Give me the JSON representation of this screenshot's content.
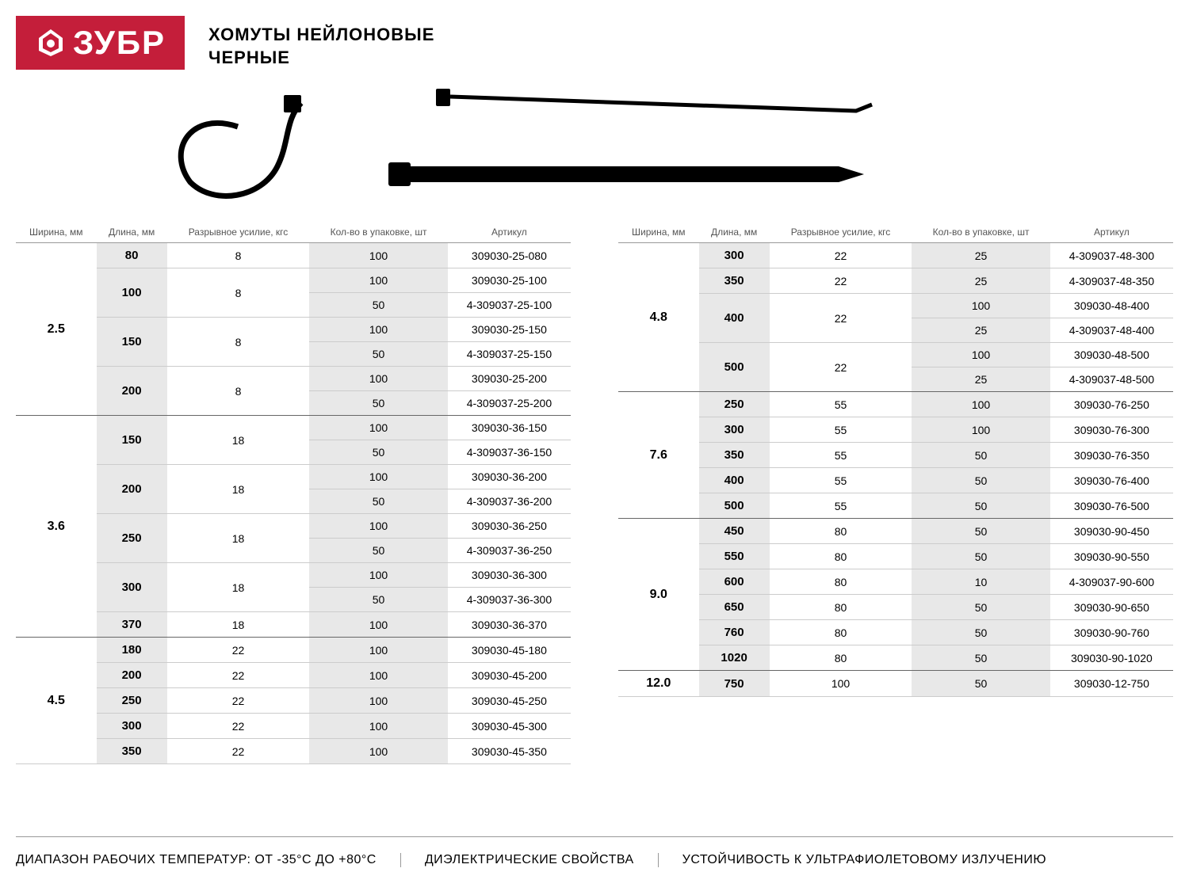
{
  "brand": "ЗУБР",
  "title_line1": "ХОМУТЫ НЕЙЛОНОВЫЕ",
  "title_line2": "ЧЕРНЫЕ",
  "columns": {
    "width": "Ширина, мм",
    "length": "Длина, мм",
    "force": "Разрывное усилие, кгс",
    "pack": "Кол-во в упаковке, шт",
    "sku": "Артикул"
  },
  "colors": {
    "brand_bg": "#c41e3a",
    "alt_bg": "#e8e8e8",
    "border": "#cccccc",
    "border_strong": "#666666"
  },
  "left_groups": [
    {
      "width": "2.5",
      "rows": [
        {
          "length": "80",
          "force": "8",
          "packs": [
            {
              "qty": "100",
              "sku": "309030-25-080"
            }
          ]
        },
        {
          "length": "100",
          "force": "8",
          "packs": [
            {
              "qty": "100",
              "sku": "309030-25-100"
            },
            {
              "qty": "50",
              "sku": "4-309037-25-100"
            }
          ]
        },
        {
          "length": "150",
          "force": "8",
          "packs": [
            {
              "qty": "100",
              "sku": "309030-25-150"
            },
            {
              "qty": "50",
              "sku": "4-309037-25-150"
            }
          ]
        },
        {
          "length": "200",
          "force": "8",
          "packs": [
            {
              "qty": "100",
              "sku": "309030-25-200"
            },
            {
              "qty": "50",
              "sku": "4-309037-25-200"
            }
          ]
        }
      ]
    },
    {
      "width": "3.6",
      "rows": [
        {
          "length": "150",
          "force": "18",
          "packs": [
            {
              "qty": "100",
              "sku": "309030-36-150"
            },
            {
              "qty": "50",
              "sku": "4-309037-36-150"
            }
          ]
        },
        {
          "length": "200",
          "force": "18",
          "packs": [
            {
              "qty": "100",
              "sku": "309030-36-200"
            },
            {
              "qty": "50",
              "sku": "4-309037-36-200"
            }
          ]
        },
        {
          "length": "250",
          "force": "18",
          "packs": [
            {
              "qty": "100",
              "sku": "309030-36-250"
            },
            {
              "qty": "50",
              "sku": "4-309037-36-250"
            }
          ]
        },
        {
          "length": "300",
          "force": "18",
          "packs": [
            {
              "qty": "100",
              "sku": "309030-36-300"
            },
            {
              "qty": "50",
              "sku": "4-309037-36-300"
            }
          ]
        },
        {
          "length": "370",
          "force": "18",
          "packs": [
            {
              "qty": "100",
              "sku": "309030-36-370"
            }
          ]
        }
      ]
    },
    {
      "width": "4.5",
      "rows": [
        {
          "length": "180",
          "force": "22",
          "packs": [
            {
              "qty": "100",
              "sku": "309030-45-180"
            }
          ]
        },
        {
          "length": "200",
          "force": "22",
          "packs": [
            {
              "qty": "100",
              "sku": "309030-45-200"
            }
          ]
        },
        {
          "length": "250",
          "force": "22",
          "packs": [
            {
              "qty": "100",
              "sku": "309030-45-250"
            }
          ]
        },
        {
          "length": "300",
          "force": "22",
          "packs": [
            {
              "qty": "100",
              "sku": "309030-45-300"
            }
          ]
        },
        {
          "length": "350",
          "force": "22",
          "packs": [
            {
              "qty": "100",
              "sku": "309030-45-350"
            }
          ]
        }
      ]
    }
  ],
  "right_groups": [
    {
      "width": "4.8",
      "rows": [
        {
          "length": "300",
          "force": "22",
          "packs": [
            {
              "qty": "25",
              "sku": "4-309037-48-300"
            }
          ]
        },
        {
          "length": "350",
          "force": "22",
          "packs": [
            {
              "qty": "25",
              "sku": "4-309037-48-350"
            }
          ]
        },
        {
          "length": "400",
          "force": "22",
          "packs": [
            {
              "qty": "100",
              "sku": "309030-48-400"
            },
            {
              "qty": "25",
              "sku": "4-309037-48-400"
            }
          ]
        },
        {
          "length": "500",
          "force": "22",
          "packs": [
            {
              "qty": "100",
              "sku": "309030-48-500"
            },
            {
              "qty": "25",
              "sku": "4-309037-48-500"
            }
          ]
        }
      ]
    },
    {
      "width": "7.6",
      "rows": [
        {
          "length": "250",
          "force": "55",
          "packs": [
            {
              "qty": "100",
              "sku": "309030-76-250"
            }
          ]
        },
        {
          "length": "300",
          "force": "55",
          "packs": [
            {
              "qty": "100",
              "sku": "309030-76-300"
            }
          ]
        },
        {
          "length": "350",
          "force": "55",
          "packs": [
            {
              "qty": "50",
              "sku": "309030-76-350"
            }
          ]
        },
        {
          "length": "400",
          "force": "55",
          "packs": [
            {
              "qty": "50",
              "sku": "309030-76-400"
            }
          ]
        },
        {
          "length": "500",
          "force": "55",
          "packs": [
            {
              "qty": "50",
              "sku": "309030-76-500"
            }
          ]
        }
      ]
    },
    {
      "width": "9.0",
      "rows": [
        {
          "length": "450",
          "force": "80",
          "packs": [
            {
              "qty": "50",
              "sku": "309030-90-450"
            }
          ]
        },
        {
          "length": "550",
          "force": "80",
          "packs": [
            {
              "qty": "50",
              "sku": "309030-90-550"
            }
          ]
        },
        {
          "length": "600",
          "force": "80",
          "packs": [
            {
              "qty": "10",
              "sku": "4-309037-90-600"
            }
          ]
        },
        {
          "length": "650",
          "force": "80",
          "packs": [
            {
              "qty": "50",
              "sku": "309030-90-650"
            }
          ]
        },
        {
          "length": "760",
          "force": "80",
          "packs": [
            {
              "qty": "50",
              "sku": "309030-90-760"
            }
          ]
        },
        {
          "length": "1020",
          "force": "80",
          "packs": [
            {
              "qty": "50",
              "sku": "309030-90-1020"
            }
          ]
        }
      ]
    },
    {
      "width": "12.0",
      "rows": [
        {
          "length": "750",
          "force": "100",
          "packs": [
            {
              "qty": "50",
              "sku": "309030-12-750"
            }
          ]
        }
      ]
    }
  ],
  "footer": {
    "temp": "ДИАПАЗОН РАБОЧИХ ТЕМПЕРАТУР: ОТ -35°С ДО +80°С",
    "diel": "ДИЭЛЕКТРИЧЕСКИЕ СВОЙСТВА",
    "uv": "УСТОЙЧИВОСТЬ К УЛЬТРАФИОЛЕТОВОМУ ИЗЛУЧЕНИЮ"
  }
}
